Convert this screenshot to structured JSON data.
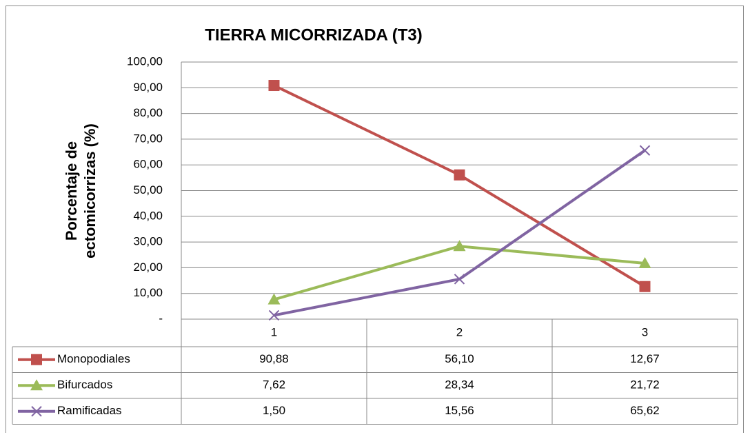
{
  "chart_data": {
    "type": "line",
    "title": "TIERRA MICORRIZADA (T3)",
    "ylabel": [
      "Porcentaje de",
      "ectomicorrizas (%)"
    ],
    "categories": [
      "1",
      "2",
      "3"
    ],
    "series": [
      {
        "name": "Monopodiales",
        "color": "#c0504d",
        "marker": "square",
        "values": [
          90.88,
          56.1,
          12.67
        ],
        "value_labels": [
          "90,88",
          "56,10",
          "12,67"
        ]
      },
      {
        "name": "Bifurcados",
        "color": "#9bbb59",
        "marker": "triangle",
        "values": [
          7.62,
          28.34,
          21.72
        ],
        "value_labels": [
          "7,62",
          "28,34",
          "21,72"
        ]
      },
      {
        "name": "Ramificadas",
        "color": "#8064a2",
        "marker": "x",
        "values": [
          1.5,
          15.56,
          65.62
        ],
        "value_labels": [
          "1,50",
          "15,56",
          "65,62"
        ]
      }
    ],
    "ylim": [
      0,
      100
    ],
    "yticks": [
      {
        "value": 0,
        "label": "-"
      },
      {
        "value": 10,
        "label": "10,00"
      },
      {
        "value": 20,
        "label": "20,00"
      },
      {
        "value": 30,
        "label": "30,00"
      },
      {
        "value": 40,
        "label": "40,00"
      },
      {
        "value": 50,
        "label": "50,00"
      },
      {
        "value": 60,
        "label": "60,00"
      },
      {
        "value": 70,
        "label": "70,00"
      },
      {
        "value": 80,
        "label": "80,00"
      },
      {
        "value": 90,
        "label": "90,00"
      },
      {
        "value": 100,
        "label": "100,00"
      }
    ],
    "grid": true
  }
}
